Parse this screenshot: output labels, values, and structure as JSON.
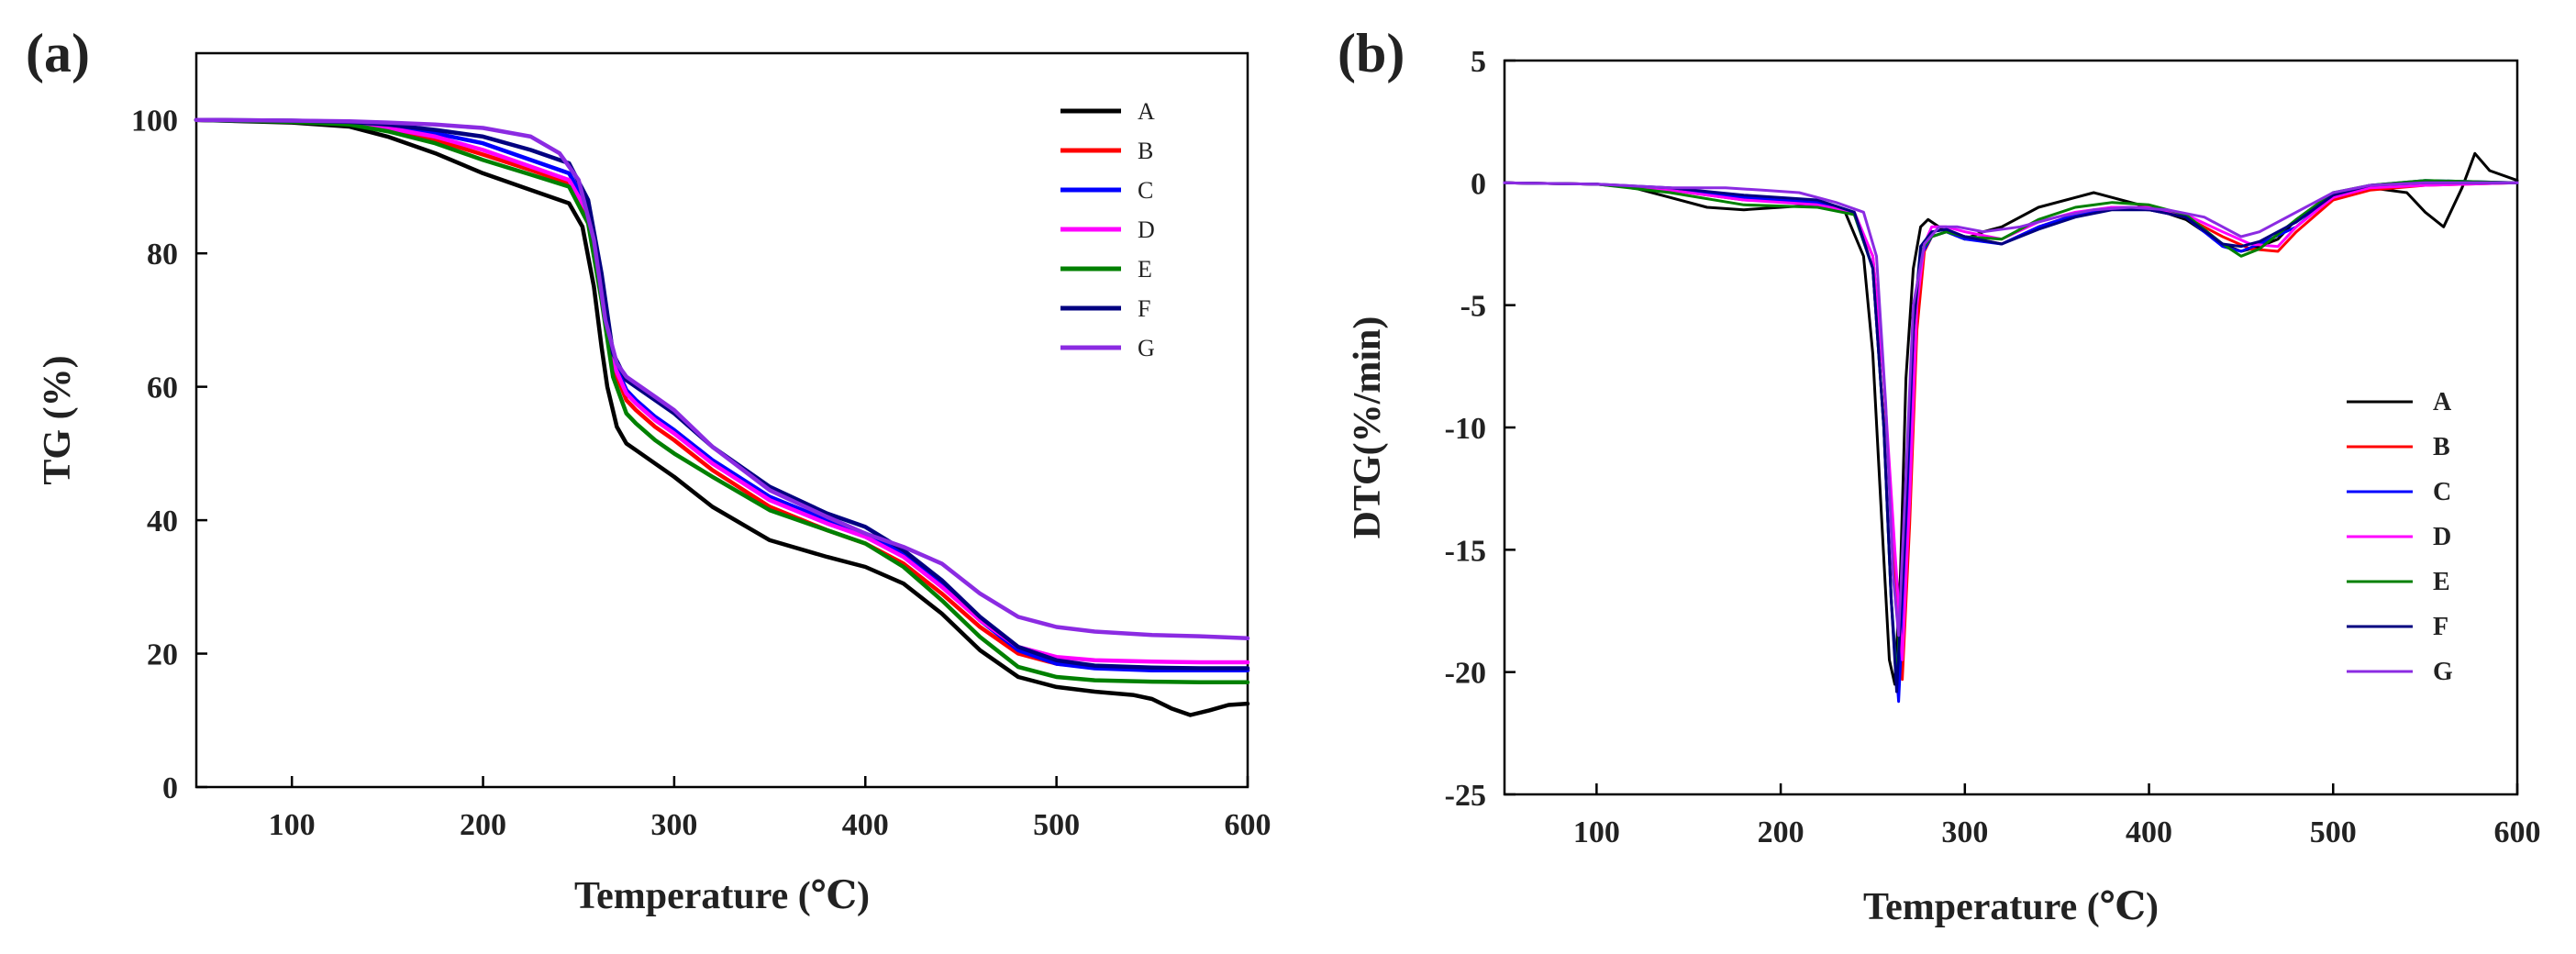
{
  "chart_data": [
    {
      "panel": "(a)",
      "type": "line",
      "xlabel": "Temperature (℃)",
      "ylabel": "TG (%)",
      "xlim": [
        50,
        600
      ],
      "ylim": [
        0,
        110
      ],
      "xticks": [
        100,
        200,
        300,
        400,
        500,
        600
      ],
      "yticks": [
        0,
        20,
        40,
        60,
        80,
        100
      ],
      "legend_position": "top-right",
      "series": [
        {
          "name": "A",
          "color": "#000000",
          "x": [
            50,
            100,
            130,
            150,
            175,
            200,
            225,
            245,
            252,
            258,
            262,
            265,
            270,
            275,
            280,
            290,
            300,
            320,
            350,
            380,
            400,
            420,
            440,
            460,
            480,
            500,
            520,
            540,
            550,
            560,
            570,
            580,
            590,
            600
          ],
          "y": [
            100,
            99.6,
            99,
            97.5,
            95,
            92,
            89.5,
            87.5,
            84,
            75,
            66,
            60,
            54,
            51.5,
            50.5,
            48.5,
            46.5,
            42,
            37,
            34.5,
            33,
            30.5,
            26,
            20.5,
            16.5,
            15,
            14.3,
            13.8,
            13.2,
            11.8,
            10.8,
            11.5,
            12.3,
            12.5
          ]
        },
        {
          "name": "B",
          "color": "#ff0000",
          "x": [
            50,
            100,
            130,
            150,
            175,
            200,
            225,
            245,
            255,
            262,
            268,
            275,
            280,
            290,
            300,
            320,
            350,
            380,
            400,
            420,
            440,
            460,
            480,
            500,
            520,
            550,
            575,
            600
          ],
          "y": [
            100,
            99.8,
            99.5,
            98.7,
            97,
            94.8,
            92.5,
            90.5,
            85,
            74,
            63,
            58,
            56.5,
            54,
            52,
            47.5,
            42,
            38.5,
            36.5,
            33.5,
            29,
            24,
            20,
            18.5,
            18,
            17.8,
            17.6,
            17.5
          ]
        },
        {
          "name": "C",
          "color": "#0000ff",
          "x": [
            50,
            100,
            130,
            150,
            175,
            200,
            225,
            245,
            255,
            262,
            268,
            275,
            280,
            290,
            300,
            320,
            350,
            380,
            400,
            420,
            440,
            460,
            480,
            500,
            520,
            550,
            575,
            600
          ],
          "y": [
            100,
            99.8,
            99.6,
            99,
            98,
            96.5,
            94,
            92,
            87,
            76,
            64,
            59.5,
            58,
            55.5,
            53.5,
            49,
            43.5,
            40,
            38,
            35,
            30.5,
            25,
            20.5,
            18.5,
            17.8,
            17.5,
            17.5,
            17.5
          ]
        },
        {
          "name": "D",
          "color": "#ff00ff",
          "x": [
            50,
            100,
            130,
            150,
            175,
            200,
            225,
            245,
            255,
            262,
            268,
            275,
            280,
            290,
            300,
            320,
            350,
            380,
            400,
            420,
            440,
            460,
            480,
            500,
            520,
            550,
            575,
            600
          ],
          "y": [
            100,
            99.8,
            99.5,
            98.8,
            97.5,
            95.5,
            93,
            91,
            86,
            75,
            63.5,
            59,
            57.5,
            55,
            53,
            48.5,
            43,
            39.5,
            37.5,
            34.5,
            30,
            25,
            21,
            19.5,
            19,
            18.8,
            18.7,
            18.7
          ]
        },
        {
          "name": "E",
          "color": "#008000",
          "x": [
            50,
            100,
            130,
            150,
            175,
            200,
            225,
            245,
            255,
            262,
            268,
            275,
            280,
            290,
            300,
            320,
            350,
            380,
            400,
            420,
            440,
            460,
            480,
            500,
            520,
            550,
            575,
            600
          ],
          "y": [
            100,
            99.7,
            99.3,
            98.3,
            96.5,
            94,
            91.8,
            90,
            84.5,
            73,
            61.5,
            56,
            54.5,
            52,
            50,
            46.5,
            41.5,
            38.5,
            36.5,
            33,
            28,
            22.5,
            18,
            16.5,
            16,
            15.8,
            15.7,
            15.7
          ]
        },
        {
          "name": "F",
          "color": "#000080",
          "x": [
            50,
            100,
            130,
            150,
            175,
            200,
            225,
            245,
            255,
            262,
            268,
            275,
            280,
            290,
            300,
            320,
            350,
            380,
            400,
            420,
            440,
            460,
            480,
            500,
            520,
            550,
            575,
            600
          ],
          "y": [
            100,
            99.9,
            99.7,
            99.3,
            98.5,
            97.5,
            95.5,
            93.5,
            88,
            77,
            65,
            61,
            60,
            58,
            56,
            51,
            45,
            41,
            39,
            35.5,
            31,
            25.5,
            21,
            19,
            18.2,
            17.9,
            17.8,
            17.8
          ]
        },
        {
          "name": "G",
          "color": "#8b2be2",
          "x": [
            50,
            100,
            130,
            150,
            175,
            200,
            225,
            240,
            250,
            258,
            264,
            270,
            275,
            280,
            290,
            300,
            320,
            350,
            380,
            400,
            420,
            440,
            460,
            480,
            500,
            520,
            550,
            575,
            600
          ],
          "y": [
            100,
            99.9,
            99.8,
            99.6,
            99.3,
            98.8,
            97.5,
            95,
            91,
            82,
            70,
            63.5,
            61.5,
            60.5,
            58.5,
            56.5,
            51,
            44.5,
            40.5,
            38,
            36,
            33.5,
            29,
            25.5,
            24,
            23.3,
            22.8,
            22.6,
            22.3
          ]
        }
      ]
    },
    {
      "panel": "(b)",
      "type": "line",
      "xlabel": "Temperature (℃)",
      "ylabel": "DTG(%/min)",
      "xlim": [
        50,
        600
      ],
      "ylim": [
        -25,
        5
      ],
      "xticks": [
        100,
        200,
        300,
        400,
        500,
        600
      ],
      "yticks": [
        -25,
        -20,
        -15,
        -10,
        -5,
        0,
        5
      ],
      "legend_position": "bottom-right",
      "series": [
        {
          "name": "A",
          "color": "#000000",
          "x": [
            50,
            100,
            120,
            140,
            160,
            180,
            200,
            220,
            235,
            245,
            250,
            255,
            259,
            262,
            265,
            268,
            272,
            276,
            280,
            290,
            300,
            310,
            320,
            340,
            360,
            370,
            380,
            400,
            420,
            440,
            450,
            460,
            470,
            480,
            500,
            520,
            540,
            550,
            560,
            570,
            577,
            585,
            600
          ],
          "y": [
            0,
            -0.05,
            -0.2,
            -0.6,
            -1,
            -1.1,
            -1,
            -0.9,
            -1.2,
            -3,
            -7,
            -14,
            -19.5,
            -20.5,
            -16,
            -8,
            -3.5,
            -1.8,
            -1.5,
            -2,
            -2.3,
            -2,
            -1.8,
            -1,
            -0.6,
            -0.4,
            -0.6,
            -1,
            -1.5,
            -2.5,
            -2.8,
            -2.6,
            -2.3,
            -1.5,
            -0.4,
            -0.2,
            -0.4,
            -1.2,
            -1.8,
            -0.2,
            1.2,
            0.5,
            0.1
          ]
        },
        {
          "name": "B",
          "color": "#ff0000",
          "x": [
            50,
            100,
            140,
            180,
            220,
            240,
            250,
            256,
            262,
            266,
            270,
            274,
            278,
            282,
            290,
            300,
            320,
            340,
            360,
            380,
            400,
            420,
            440,
            455,
            470,
            480,
            500,
            520,
            550,
            600
          ],
          "y": [
            0,
            -0.05,
            -0.3,
            -0.7,
            -0.8,
            -1.3,
            -3,
            -8,
            -16,
            -20.3,
            -14,
            -6,
            -2.8,
            -2.2,
            -2,
            -2.2,
            -2.5,
            -1.8,
            -1.3,
            -1,
            -1.1,
            -1.4,
            -2.2,
            -2.7,
            -2.8,
            -2,
            -0.7,
            -0.3,
            -0.1,
            0
          ]
        },
        {
          "name": "C",
          "color": "#0000ff",
          "x": [
            50,
            100,
            140,
            180,
            220,
            240,
            250,
            256,
            260,
            264,
            268,
            272,
            276,
            282,
            290,
            300,
            320,
            340,
            360,
            380,
            400,
            420,
            440,
            450,
            460,
            480,
            500,
            520,
            550,
            600
          ],
          "y": [
            0,
            -0.05,
            -0.3,
            -0.6,
            -0.8,
            -1.3,
            -3.5,
            -10,
            -17,
            -21.2,
            -15,
            -6.5,
            -3,
            -2.2,
            -2,
            -2.3,
            -2.5,
            -1.8,
            -1.3,
            -1,
            -1.1,
            -1.4,
            -2.6,
            -2.8,
            -2.5,
            -1.8,
            -0.5,
            -0.1,
            0.1,
            0
          ]
        },
        {
          "name": "D",
          "color": "#ff00ff",
          "x": [
            50,
            100,
            140,
            180,
            220,
            240,
            250,
            256,
            262,
            266,
            270,
            274,
            278,
            282,
            290,
            300,
            320,
            340,
            360,
            380,
            400,
            420,
            440,
            455,
            470,
            480,
            500,
            520,
            550,
            600
          ],
          "y": [
            0,
            -0.05,
            -0.3,
            -0.7,
            -0.9,
            -1.2,
            -3,
            -8,
            -15,
            -19.5,
            -13,
            -5,
            -2.5,
            -1.8,
            -1.8,
            -2,
            -2.3,
            -1.6,
            -1.2,
            -1,
            -1,
            -1.3,
            -2,
            -2.5,
            -2.6,
            -1.8,
            -0.6,
            -0.2,
            -0.1,
            0
          ]
        },
        {
          "name": "E",
          "color": "#008000",
          "x": [
            50,
            100,
            140,
            180,
            220,
            240,
            250,
            256,
            260,
            263,
            267,
            272,
            276,
            282,
            290,
            300,
            320,
            340,
            360,
            380,
            400,
            420,
            440,
            450,
            460,
            480,
            500,
            520,
            550,
            600
          ],
          "y": [
            0,
            -0.05,
            -0.4,
            -0.9,
            -1,
            -1.3,
            -3.5,
            -10,
            -17,
            -20.5,
            -14,
            -6,
            -2.8,
            -2.2,
            -2,
            -2.2,
            -2.3,
            -1.5,
            -1,
            -0.8,
            -0.9,
            -1.3,
            -2.5,
            -3,
            -2.7,
            -1.5,
            -0.4,
            -0.1,
            0.1,
            0
          ]
        },
        {
          "name": "F",
          "color": "#000080",
          "x": [
            50,
            100,
            140,
            180,
            220,
            240,
            250,
            256,
            260,
            263,
            267,
            272,
            276,
            282,
            290,
            300,
            320,
            340,
            360,
            380,
            400,
            420,
            440,
            450,
            460,
            480,
            500,
            520,
            550,
            600
          ],
          "y": [
            0,
            -0.05,
            -0.2,
            -0.5,
            -0.7,
            -1.2,
            -3.5,
            -10,
            -17,
            -20.8,
            -15,
            -6,
            -2.6,
            -2,
            -1.9,
            -2.2,
            -2.5,
            -1.9,
            -1.4,
            -1.1,
            -1.1,
            -1.4,
            -2.5,
            -2.6,
            -2.4,
            -1.6,
            -0.5,
            -0.1,
            0,
            0
          ]
        },
        {
          "name": "G",
          "color": "#8b2be2",
          "x": [
            50,
            100,
            140,
            170,
            190,
            210,
            230,
            245,
            252,
            257,
            261,
            264,
            268,
            272,
            278,
            286,
            296,
            310,
            330,
            350,
            370,
            390,
            410,
            430,
            440,
            450,
            460,
            480,
            500,
            520,
            550,
            600
          ],
          "y": [
            0,
            -0.05,
            -0.2,
            -0.2,
            -0.3,
            -0.4,
            -0.8,
            -1.2,
            -3,
            -9,
            -16,
            -18.5,
            -12,
            -5,
            -2.5,
            -1.8,
            -1.8,
            -2,
            -1.8,
            -1.4,
            -1.1,
            -1,
            -1.1,
            -1.4,
            -1.8,
            -2.2,
            -2,
            -1.2,
            -0.4,
            -0.1,
            0,
            0
          ]
        }
      ]
    }
  ]
}
